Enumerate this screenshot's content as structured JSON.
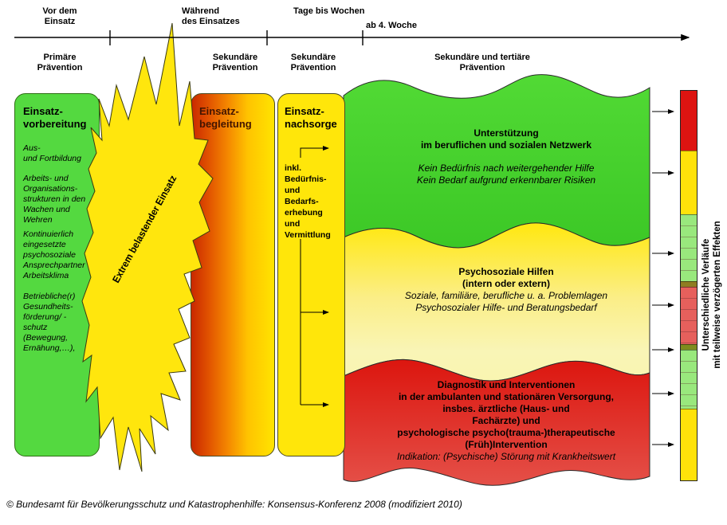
{
  "header": {
    "phase_labels": [
      {
        "label": "Vor dem\nEinsatz"
      },
      {
        "label": "Während\ndes Einsatzes"
      },
      {
        "label": "Tage bis Wochen"
      },
      {
        "label": "ab 4. Woche"
      }
    ],
    "prevention_labels": [
      "Primäre\nPrävention",
      "Sekundäre\nPrävention",
      "Sekundäre\nPrävention",
      "Sekundäre und tertiäre\nPrävention"
    ]
  },
  "boxes": {
    "vorbereitung": {
      "title": "Einsatz-\nvorbereitung",
      "items": [
        "Aus-\nund Fortbildung",
        "Arbeits- und\nOrganisations-\nstrukturen in den\nWachen und\nWehren",
        "Kontinuierlich\neingesetzte\npsychosoziale\nAnsprechpartner",
        "Arbeitsklima",
        "Betriebliche(r)\nGesundheits-\nförderung/ -\nschutz\n(Bewegung,\nErnähung,…),"
      ]
    },
    "begleitung": {
      "title": "Einsatz-\nbegleitung"
    },
    "nachsorge": {
      "title": "Einsatz-\nnachsorge",
      "note": "inkl.\nBedürfnis-\nund\nBedarfs-\nerhebung\nund\nVermittlung"
    }
  },
  "star": {
    "label": "Extrem belastender Einsatz"
  },
  "bands": {
    "green": {
      "title": "Unterstützung\nim beruflichen und sozialen Netzwerk",
      "subtitle": "Kein Bedürfnis nach weitergehender Hilfe\nKein Bedarf aufgrund erkennbarer Risiken"
    },
    "yellow": {
      "title": "Psychosoziale Hilfen\n(intern oder extern)",
      "subtitle": "Soziale, familiäre, berufliche u. a. Problemlagen\nPsychosozialer Hilfe- und Beratungsbedarf"
    },
    "red": {
      "title": "Diagnostik und Interventionen\nin der ambulanten und stationären Versorgung,\ninsbes. ärztliche (Haus- und\nFachärzte) und\npsychologische psycho(trauma-)therapeutische\n(Früh)Intervention",
      "subtitle": "Indikation: (Psychische) Störung mit Krankheitswert"
    }
  },
  "outcome_bar": {
    "label": "Unterschiedliche Verläufe\nmit teilweise verzögerten Effekten",
    "segments": [
      {
        "color": "#dd1411",
        "height": 75,
        "cells": false
      },
      {
        "color": "#ffe20a",
        "height": 80,
        "cells": false
      },
      {
        "color": "#99e87d",
        "height": 84,
        "cells": true
      },
      {
        "color": "#8f7d22",
        "height": 7,
        "cells": false
      },
      {
        "color": "#e6605c",
        "height": 72,
        "cells": true
      },
      {
        "color": "#7f8c1e",
        "height": 7,
        "cells": false
      },
      {
        "color": "#99e87d",
        "height": 74,
        "cells": true
      },
      {
        "color": "#ffe20a",
        "height": 90,
        "cells": false
      }
    ]
  },
  "footer": {
    "caption": "© Bundesamt für Bevölkerungsschutz und Katastrophenhilfe: Konsensus-Konferenz 2008 (modifiziert 2010)"
  },
  "colors": {
    "box_green": "#54d940",
    "box_gradient_left": "#c92800",
    "box_gradient_right": "#ffe400",
    "box_yellow": "#ffe60a",
    "star_yellow": "#ffe60d",
    "band_green": "#46d22e",
    "band_yellow_top": "#ffe815",
    "band_yellow_bottom": "#f9f5b0",
    "band_red_top": "#dc1710",
    "band_red_bottom": "#e5524a"
  }
}
